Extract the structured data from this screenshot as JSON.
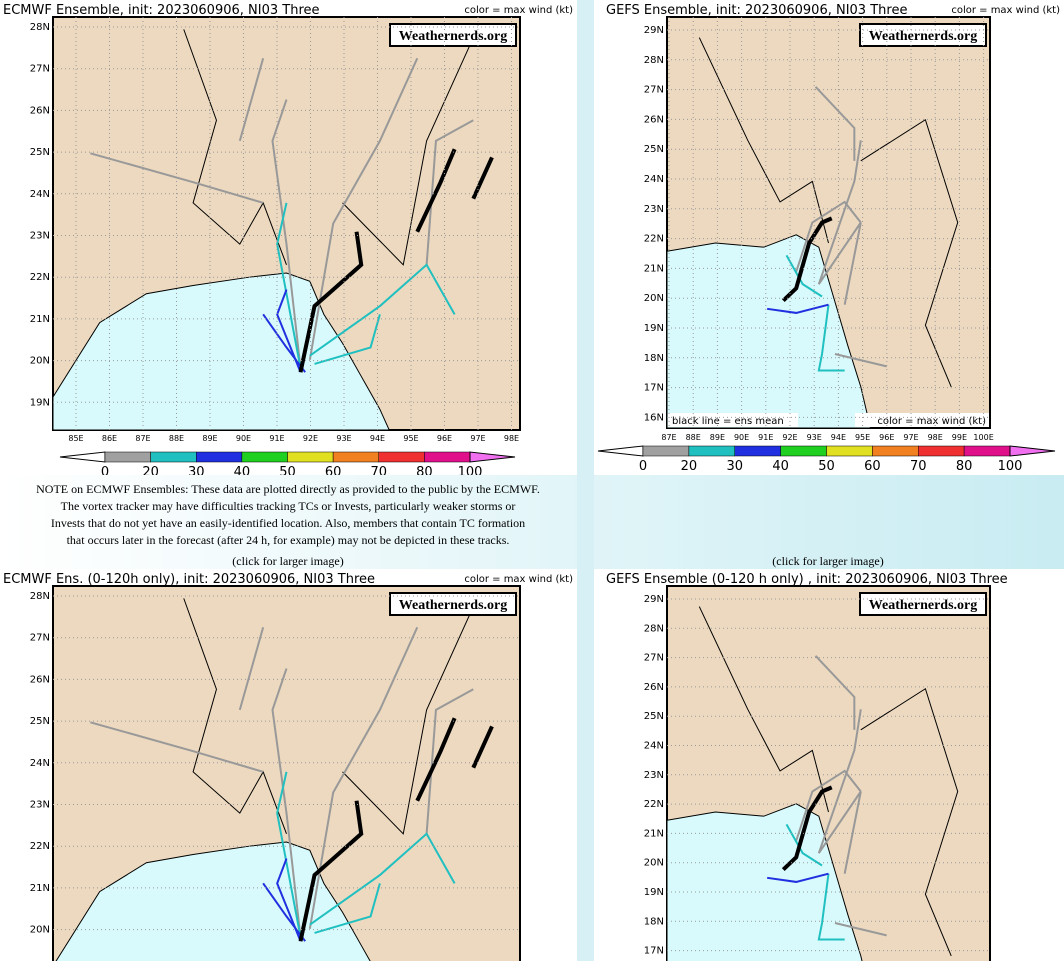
{
  "note": {
    "lines": [
      "NOTE on ECMWF Ensembles: These data are plotted directly as provided to the public by the ECMWF.",
      "The vortex tracker may have difficulties tracking TCs or Invests, particularly weaker storms or",
      "Invests that do not yet have an easily-identified location. Also, members that contain TC formation",
      "that occurs later in the forecast (after 24 h, for example) may not be depicted in these tracks."
    ]
  },
  "captions": [
    "(click for larger image)",
    "(click for larger image)"
  ],
  "panels": [
    {
      "title": "ECMWF Ensemble, init: 2023060906, NI03 Three",
      "legend_label": "color = max wind (kt)",
      "watermark": "Weathernerds.org",
      "lat_labels": [
        "28N",
        "27N",
        "26N",
        "25N",
        "24N",
        "23N",
        "22N",
        "21N",
        "20N",
        "19N"
      ],
      "lon_labels": [
        "85E",
        "86E",
        "87E",
        "88E",
        "89E",
        "90E",
        "91E",
        "92E",
        "93E",
        "94E",
        "95E",
        "96E",
        "97E",
        "98E"
      ],
      "colorbar": {
        "labels": [
          0,
          20,
          30,
          40,
          50,
          60,
          70,
          80,
          100
        ],
        "colors": [
          "#a0a0a0",
          "#20c0c0",
          "#2030e0",
          "#20d020",
          "#e0e020",
          "#f08020",
          "#f03030",
          "#e0108a"
        ]
      }
    },
    {
      "title": "GEFS Ensemble, init: 2023060906, NI03 Three",
      "legend_label": "color = max wind (kt)",
      "watermark": "Weathernerds.org",
      "mean_label": "black line = ens mean",
      "lat_labels": [
        "29N",
        "28N",
        "27N",
        "26N",
        "25N",
        "24N",
        "23N",
        "22N",
        "21N",
        "20N",
        "19N",
        "18N",
        "17N",
        "16N"
      ],
      "lon_labels": [
        "87E",
        "88E",
        "89E",
        "90E",
        "91E",
        "92E",
        "93E",
        "94E",
        "95E",
        "96E",
        "97E",
        "98E",
        "99E",
        "100E"
      ],
      "colorbar": {
        "labels": [
          0,
          20,
          30,
          40,
          50,
          60,
          70,
          80,
          100
        ],
        "colors": [
          "#a0a0a0",
          "#20c0c0",
          "#2030e0",
          "#20d020",
          "#e0e020",
          "#f08020",
          "#f03030",
          "#e0108a"
        ]
      }
    },
    {
      "title": "ECMWF Ens. (0-120h only), init: 2023060906, NI03 Three",
      "legend_label": "color = max wind (kt)",
      "watermark": "Weathernerds.org",
      "lat_labels": [
        "28N",
        "27N",
        "26N",
        "25N",
        "24N",
        "23N",
        "22N",
        "21N",
        "20N"
      ]
    },
    {
      "title": "GEFS Ensemble (0-120 h only) , init: 2023060906, NI03 Three",
      "watermark": "Weathernerds.org",
      "lat_labels": [
        "29N",
        "28N",
        "27N",
        "26N",
        "25N",
        "24N",
        "23N",
        "22N",
        "21N",
        "20N",
        "19N",
        "18N",
        "17N"
      ]
    }
  ]
}
